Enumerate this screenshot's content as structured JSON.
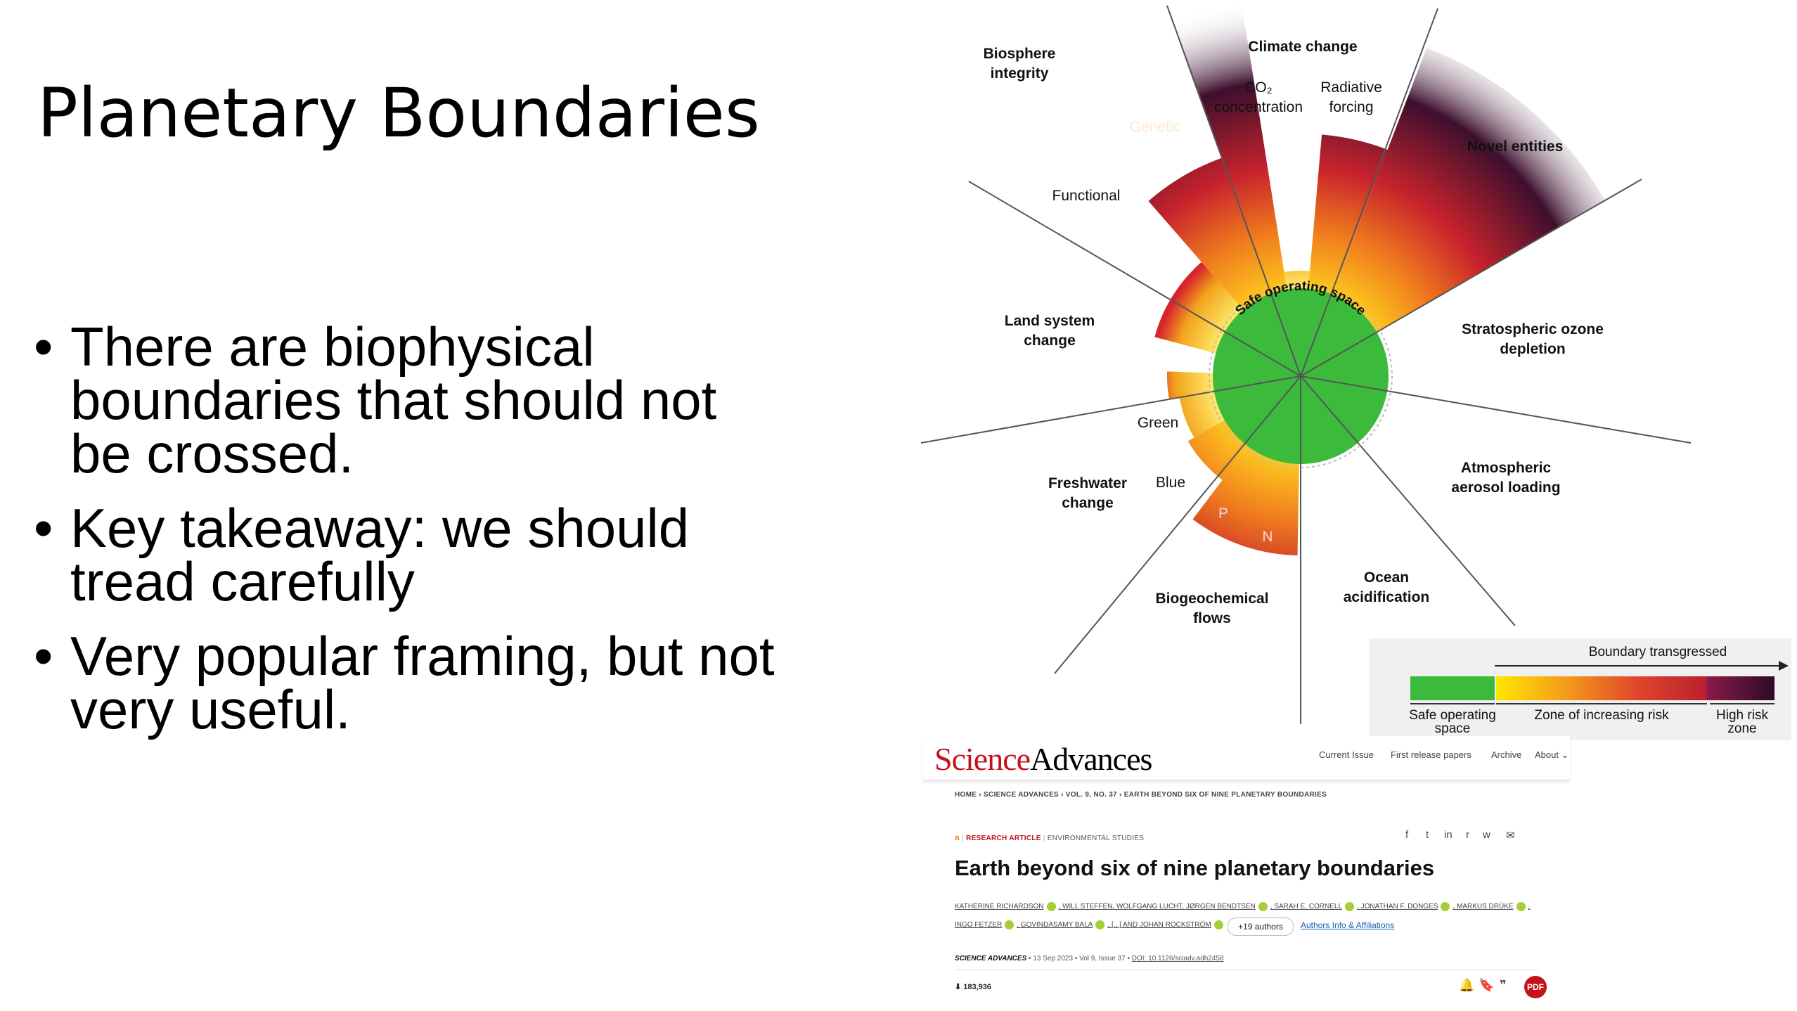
{
  "slide": {
    "title": "Planetary Boundaries",
    "bullets": [
      {
        "text": "There are biophysical boundaries that should not be crossed."
      },
      {
        "text": "Key takeaway: we should tread carefully"
      },
      {
        "text": "Very popular framing, but not very useful."
      }
    ],
    "bullet_glyph": "•"
  },
  "diagram": {
    "center_label": "Safe operating space",
    "sectors": [
      {
        "name": "Climate change",
        "sub": [
          "CO₂ concentration",
          "Radiative forcing"
        ]
      },
      {
        "name": "Novel entities"
      },
      {
        "name": "Stratospheric ozone depletion"
      },
      {
        "name": "Atmospheric aerosol loading"
      },
      {
        "name": "Ocean acidification"
      },
      {
        "name": "Biogeochemical flows",
        "sub": [
          "P",
          "N"
        ]
      },
      {
        "name": "Freshwater change",
        "sub": [
          "Blue",
          "Green"
        ]
      },
      {
        "name": "Land system change"
      },
      {
        "name": "Biosphere integrity",
        "sub": [
          "Genetic",
          "Functional"
        ]
      }
    ],
    "labels": {
      "biosphere": [
        "Biosphere",
        "integrity"
      ],
      "climate": "Climate change",
      "co2": [
        "CO₂",
        "concentration"
      ],
      "radiative": [
        "Radiative",
        "forcing"
      ],
      "novel": "Novel entities",
      "ozone": [
        "Stratospheric ozone",
        "depletion"
      ],
      "aerosol": [
        "Atmospheric",
        "aerosol loading"
      ],
      "ocean": [
        "Ocean",
        "acidification"
      ],
      "biogeo": [
        "Biogeochemical",
        "flows"
      ],
      "freshwater": [
        "Freshwater",
        "change"
      ],
      "land": [
        "Land system",
        "change"
      ],
      "functional": "Functional",
      "genetic": "Genetic",
      "green": "Green",
      "blue": "Blue",
      "p": "P",
      "n": "N"
    },
    "colors": {
      "safe": "#3cba3c",
      "yellow": "#ffd21f",
      "orange": "#f07d1d",
      "red": "#c8232c",
      "dark": "#3d0f2e"
    }
  },
  "legend": {
    "arrow_label": "Boundary transgressed",
    "safe_label": "Safe operating space",
    "risk_label": "Zone of increasing risk",
    "high_label": "High risk zone"
  },
  "article": {
    "logo_science": "Science",
    "logo_advances": "Advances",
    "nav": [
      "Current Issue",
      "First release papers",
      "Archive",
      "About ⌄"
    ],
    "breadcrumbs": "HOME  ›  SCIENCE ADVANCES  ›  VOL. 9, NO. 37  ›  EARTH BEYOND SIX OF NINE PLANETARY BOUNDARIES",
    "access_icon_glyph": "a",
    "article_type": "RESEARCH ARTICLE",
    "subject": "ENVIRONMENTAL STUDIES",
    "share_glyphs": [
      "f",
      "t",
      "in",
      "r",
      "w",
      "✉"
    ],
    "title": "Earth beyond six of nine planetary boundaries",
    "authors_line1": [
      "KATHERINE RICHARDSON",
      "WILL STEFFEN",
      "WOLFGANG LUCHT",
      "JØRGEN BENDTSEN",
      "SARAH E. CORNELL",
      "JONATHAN F. DONGES",
      "MARKUS DRÜKE"
    ],
    "authors_line2": [
      "INGO FETZER",
      "GOVINDASAMY BALA"
    ],
    "authors_ellipsis": "[...]  AND",
    "last_author": "JOHAN ROCKSTRÖM",
    "more_authors": "+19 authors",
    "affiliations": "Authors Info & Affiliations",
    "journal": "SCIENCE ADVANCES",
    "date": "13 Sep 2023",
    "volume": "Vol 9, Issue 37",
    "doi": "DOI: 10.1126/sciadv.adh2458",
    "views": "183,936",
    "download_glyph": "⬇",
    "tool_glyphs": [
      "🔔",
      "🔖",
      "❞"
    ],
    "pdf_label": "PDF"
  }
}
